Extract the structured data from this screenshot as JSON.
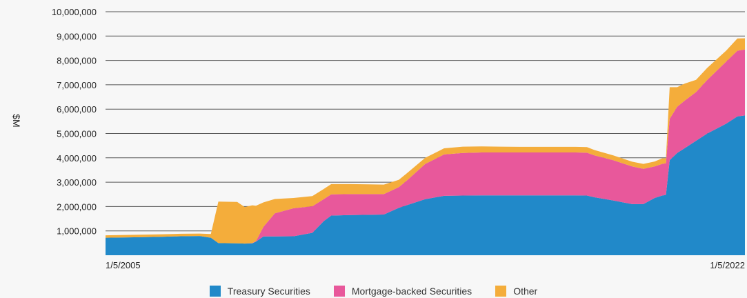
{
  "chart_data": {
    "type": "area",
    "stacked": true,
    "title": "",
    "xlabel": "",
    "ylabel": "$M",
    "x_tick_labels": [
      "1/5/2005",
      "1/5/2022"
    ],
    "y_tick_labels": [
      "1,000,000",
      "2,000,000",
      "3,000,000",
      "4,000,000",
      "5,000,000",
      "6,000,000",
      "7,000,000",
      "8,000,000",
      "9,000,000",
      "10,000,000"
    ],
    "ylim": [
      0,
      10000000
    ],
    "xlim": [
      2005.0,
      2022.0
    ],
    "grid": "horizontal",
    "legend_position": "bottom",
    "x": [
      2005.0,
      2005.9,
      2006.5,
      2007.0,
      2007.5,
      2007.8,
      2008.0,
      2008.5,
      2008.7,
      2008.9,
      2009.0,
      2009.2,
      2009.5,
      2010.0,
      2010.5,
      2010.8,
      2011.0,
      2011.5,
      2012.0,
      2012.4,
      2012.8,
      2013.0,
      2013.5,
      2014.0,
      2014.5,
      2015.0,
      2015.5,
      2016.0,
      2016.5,
      2017.0,
      2017.5,
      2017.8,
      2018.0,
      2018.5,
      2019.0,
      2019.3,
      2019.6,
      2019.8,
      2019.9,
      2020.0,
      2020.2,
      2020.4,
      2020.7,
      2021.0,
      2021.5,
      2021.8,
      2022.0
    ],
    "series": [
      {
        "name": "Treasury Securities",
        "color": "#2189c9",
        "values": [
          720000,
          740000,
          760000,
          780000,
          790000,
          720000,
          500000,
          490000,
          480000,
          490000,
          560000,
          770000,
          770000,
          780000,
          920000,
          1400000,
          1630000,
          1650000,
          1660000,
          1670000,
          1950000,
          2050000,
          2300000,
          2440000,
          2450000,
          2460000,
          2460000,
          2460000,
          2460000,
          2460000,
          2460000,
          2450000,
          2380000,
          2250000,
          2100000,
          2100000,
          2350000,
          2450000,
          2480000,
          3900000,
          4200000,
          4400000,
          4700000,
          5000000,
          5400000,
          5700000,
          5740000
        ]
      },
      {
        "name": "Mortgage-backed Securities",
        "color": "#e8589b",
        "values": [
          0,
          0,
          0,
          0,
          0,
          0,
          0,
          0,
          0,
          10000,
          20000,
          400000,
          950000,
          1150000,
          1090000,
          900000,
          870000,
          860000,
          850000,
          840000,
          850000,
          1000000,
          1450000,
          1700000,
          1750000,
          1760000,
          1760000,
          1760000,
          1760000,
          1760000,
          1760000,
          1760000,
          1720000,
          1650000,
          1550000,
          1450000,
          1300000,
          1300000,
          1300000,
          1700000,
          1900000,
          1950000,
          2000000,
          2200000,
          2550000,
          2700000,
          2710000
        ]
      },
      {
        "name": "Other",
        "color": "#f4ad3b",
        "values": [
          100000,
          100000,
          100000,
          100000,
          100000,
          150000,
          1700000,
          1700000,
          1500000,
          1550000,
          1450000,
          1000000,
          590000,
          420000,
          420000,
          420000,
          420000,
          410000,
          400000,
          390000,
          300000,
          300000,
          250000,
          250000,
          260000,
          250000,
          240000,
          230000,
          230000,
          230000,
          230000,
          230000,
          220000,
          200000,
          190000,
          200000,
          200000,
          230000,
          200000,
          1300000,
          800000,
          700000,
          500000,
          500000,
          450000,
          500000,
          460000
        ]
      }
    ]
  }
}
